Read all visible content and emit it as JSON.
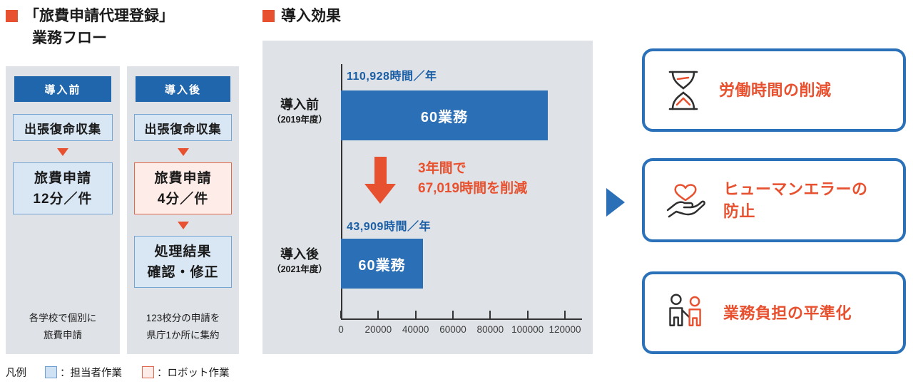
{
  "flow": {
    "title_line1": "「旅費申請代理登録」",
    "title_line2": "業務フロー",
    "columns": [
      {
        "header": "導入前",
        "step1": "出張復命収集",
        "step2_line1": "旅費申請",
        "step2_line2": "12分／件",
        "caption_line1": "各学校で個別に",
        "caption_line2": "旅費申請"
      },
      {
        "header": "導入後",
        "step1": "出張復命収集",
        "step2_line1": "旅費申請",
        "step2_line2": "4分／件",
        "step3_line1": "処理結果",
        "step3_line2": "確認・修正",
        "caption_line1": "123校分の申請を",
        "caption_line2": "県庁1か所に集約"
      }
    ],
    "legend": {
      "label": "凡例",
      "item1": "：担当者作業",
      "item2": "：ロボット作業"
    }
  },
  "effect": {
    "title": "導入効果"
  },
  "chart_data": {
    "type": "bar",
    "orientation": "horizontal",
    "title": "導入効果",
    "categories": [
      "導入前",
      "導入後"
    ],
    "category_sublabels": [
      "（2019年度）",
      "（2021年度）"
    ],
    "values": [
      110928,
      43909
    ],
    "bar_labels": [
      "60業務",
      "60業務"
    ],
    "value_labels": [
      "110,928時間／年",
      "43,909時間／年"
    ],
    "annotation_line1": "3年間で",
    "annotation_line2": "67,019時間を削減",
    "xlim": [
      0,
      120000
    ],
    "xticks": [
      0,
      20000,
      40000,
      60000,
      80000,
      100000,
      120000
    ],
    "xlabel": "",
    "ylabel": "",
    "grid": false,
    "legend_position": "none",
    "bar_color": "#2b6fb7"
  },
  "benefits": [
    {
      "icon": "hourglass-icon",
      "label": "労働時間の削減"
    },
    {
      "icon": "heart-hand-icon",
      "label_line1": "ヒューマンエラーの",
      "label_line2": "防止"
    },
    {
      "icon": "people-icon",
      "label": "業務負担の平準化"
    }
  ],
  "colors": {
    "accent_orange": "#e8512f",
    "header_blue": "#2066ad",
    "bar_blue": "#2b6fb7",
    "value_text_blue": "#1a5fa6",
    "panel_gray": "#dfe3e7",
    "step_blue_fill": "#d9e7f5",
    "step_blue_border": "#76a5d3",
    "step_pink_fill": "#fdece7",
    "step_pink_border": "#e2684a",
    "benefit_border_blue": "#2a71b9"
  }
}
